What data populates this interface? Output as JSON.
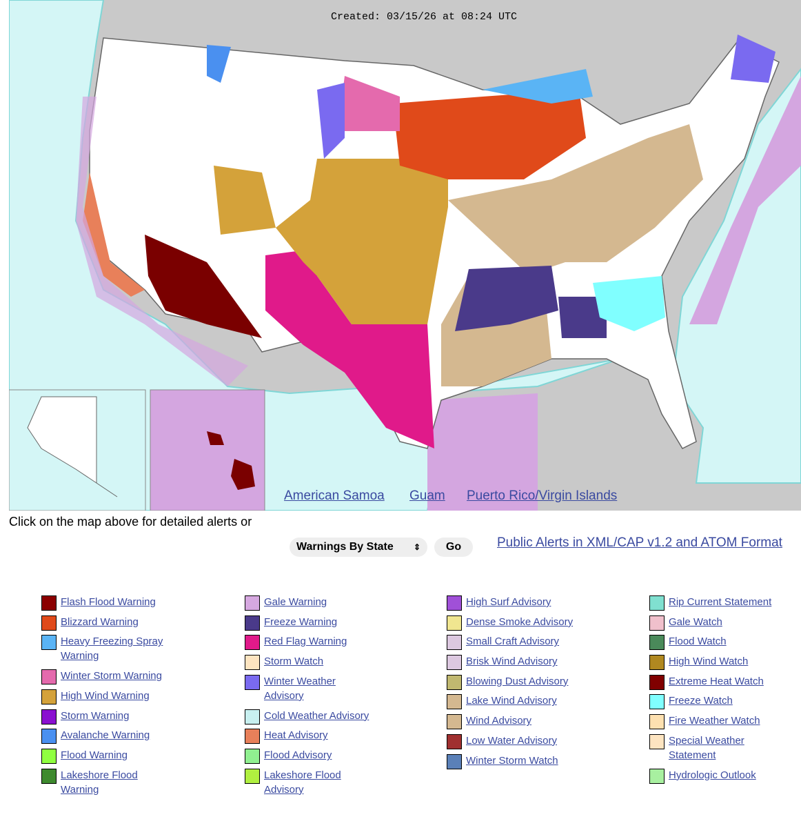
{
  "map": {
    "created": "Created: 03/15/26 at 08:24 UTC",
    "links": [
      "American Samoa",
      "Guam",
      "Puerto Rico/Virgin Islands"
    ]
  },
  "instructions": "Click on the map above for detailed alerts or",
  "controls": {
    "select": "Warnings By State",
    "button": "Go",
    "feed_link": "Public Alerts in XML/CAP v1.2 and ATOM Format"
  },
  "legend": {
    "columns": [
      [
        {
          "label": "Flash Flood Warning",
          "color": "#8b0000"
        },
        {
          "label": "Blizzard Warning",
          "color": "#e04a1a"
        },
        {
          "label": "Heavy Freezing Spray Warning",
          "color": "#5ab4f5"
        },
        {
          "label": "Winter Storm Warning",
          "color": "#e46aad"
        },
        {
          "label": "High Wind Warning",
          "color": "#d4a23a"
        },
        {
          "label": "Storm Warning",
          "color": "#8a10d0"
        },
        {
          "label": "Avalanche Warning",
          "color": "#4a90f0"
        },
        {
          "label": "Flood Warning",
          "color": "#90ff40"
        },
        {
          "label": "Lakeshore Flood Warning",
          "color": "#3e8a2e"
        }
      ],
      [
        {
          "label": "Gale Warning",
          "color": "#d6a8e0"
        },
        {
          "label": "Freeze Warning",
          "color": "#4a3a8a"
        },
        {
          "label": "Red Flag Warning",
          "color": "#e01a8a"
        },
        {
          "label": "Storm Watch",
          "color": "#fde4c0"
        },
        {
          "label": "Winter Weather Advisory",
          "color": "#7a6af0"
        },
        {
          "label": "Cold Weather Advisory",
          "color": "#c8f0f0"
        },
        {
          "label": "Heat Advisory",
          "color": "#e8805a"
        },
        {
          "label": "Flood Advisory",
          "color": "#90f090"
        },
        {
          "label": "Lakeshore Flood Advisory",
          "color": "#b0f040"
        }
      ],
      [
        {
          "label": "High Surf Advisory",
          "color": "#a050d8"
        },
        {
          "label": "Dense Smoke Advisory",
          "color": "#f0e690"
        },
        {
          "label": "Small Craft Advisory",
          "color": "#dcc8e0"
        },
        {
          "label": "Brisk Wind Advisory",
          "color": "#dcc8e0"
        },
        {
          "label": "Blowing Dust Advisory",
          "color": "#c0b870"
        },
        {
          "label": "Lake Wind Advisory",
          "color": "#d4b890"
        },
        {
          "label": "Wind Advisory",
          "color": "#d4b890"
        },
        {
          "label": "Low Water Advisory",
          "color": "#a03030"
        },
        {
          "label": "Winter Storm Watch",
          "color": "#5a80b8"
        }
      ],
      [
        {
          "label": "Rip Current Statement",
          "color": "#80e0d0"
        },
        {
          "label": "Gale Watch",
          "color": "#f0c0cc"
        },
        {
          "label": "Flood Watch",
          "color": "#4a8a5a"
        },
        {
          "label": "High Wind Watch",
          "color": "#b08820"
        },
        {
          "label": "Extreme Heat Watch",
          "color": "#800000"
        },
        {
          "label": "Freeze Watch",
          "color": "#80ffff"
        },
        {
          "label": "Fire Weather Watch",
          "color": "#fde0b0"
        },
        {
          "label": "Special Weather Statement",
          "color": "#fde4c0"
        },
        {
          "label": "Hydrologic Outlook",
          "color": "#a8f0a0"
        }
      ]
    ]
  }
}
